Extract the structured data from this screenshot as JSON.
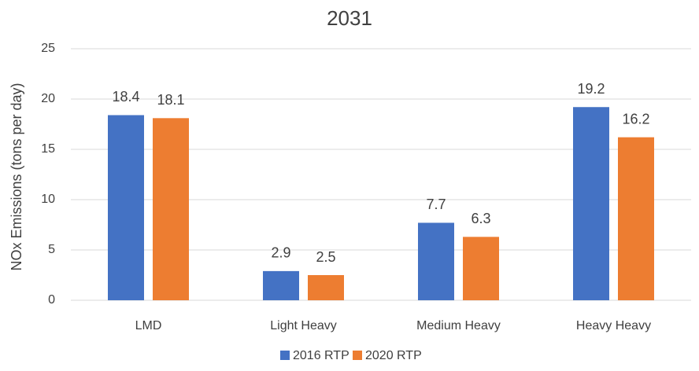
{
  "chart_data": {
    "type": "bar",
    "title": "2031",
    "y_label": "NOx Emissions (tons per day)",
    "categories": [
      "LMD",
      "Light Heavy",
      "Medium Heavy",
      "Heavy Heavy"
    ],
    "series": [
      {
        "name": "2016 RTP",
        "color": "#4472c4",
        "values": [
          18.4,
          2.9,
          7.7,
          19.2
        ]
      },
      {
        "name": "2020 RTP",
        "color": "#ed7d31",
        "values": [
          18.1,
          2.5,
          6.3,
          16.2
        ]
      }
    ],
    "ylim": [
      0,
      25
    ],
    "yticks": [
      0,
      5,
      10,
      15,
      20,
      25
    ],
    "grid": true,
    "legend": "bottom"
  }
}
